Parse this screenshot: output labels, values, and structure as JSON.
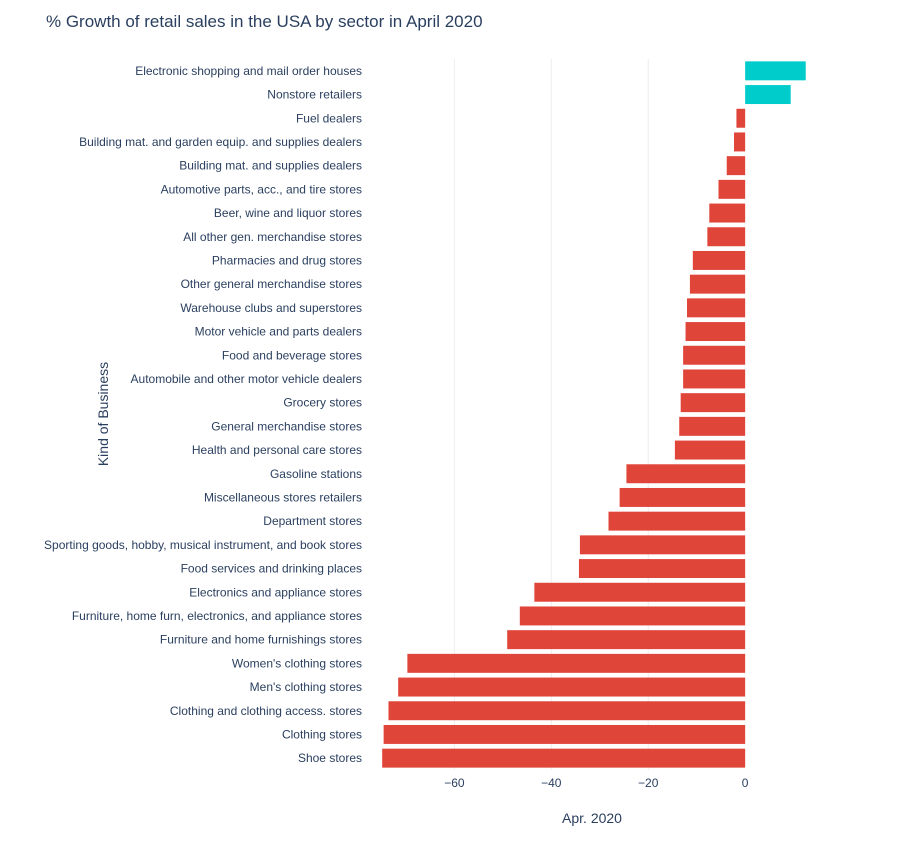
{
  "chart_data": {
    "type": "bar",
    "orientation": "horizontal",
    "title": "% Growth of retail sales in the USA by sector in April 2020",
    "xlabel": "Apr. 2020",
    "ylabel": "Kind of Business",
    "xlim": [
      -77,
      14
    ],
    "xticks": [
      -60,
      -40,
      -20,
      0
    ],
    "xtick_labels": [
      "−60",
      "−40",
      "−20",
      "0"
    ],
    "grid": "vertical",
    "colors": {
      "positive": "#00cccc",
      "negative": "#e0453a",
      "grid": "#eeeeee",
      "text": "#2a3f5f"
    },
    "categories": [
      "Electronic shopping and mail order houses",
      "Nonstore retailers",
      "Fuel dealers",
      "Building mat. and garden equip. and supplies dealers",
      "Building mat. and supplies dealers",
      "Automotive parts, acc., and tire stores",
      "Beer, wine and liquor stores",
      "All other gen. merchandise stores",
      "Pharmacies and drug stores",
      "Other general merchandise stores",
      "Warehouse clubs and superstores",
      "Motor vehicle and parts dealers",
      "Food and beverage stores",
      "Automobile and other motor vehicle dealers",
      "Grocery stores",
      "General merchandise stores",
      "Health and personal care stores",
      "Gasoline stations",
      "Miscellaneous stores retailers",
      "Department stores",
      "Sporting goods, hobby, musical instrument, and book stores",
      "Food services and drinking places",
      "Electronics and appliance stores",
      "Furniture, home furn, electronics, and appliance stores",
      "Furniture and home furnishings stores",
      "Women's clothing stores",
      "Men's clothing stores",
      "Clothing and clothing access. stores",
      "Clothing stores",
      "Shoe stores"
    ],
    "values": [
      12.5,
      9.4,
      -1.8,
      -2.3,
      -3.8,
      -5.5,
      -7.4,
      -7.8,
      -10.8,
      -11.4,
      -12.0,
      -12.3,
      -12.8,
      -12.8,
      -13.3,
      -13.6,
      -14.5,
      -24.5,
      -25.9,
      -28.2,
      -34.1,
      -34.3,
      -43.5,
      -46.5,
      -49.1,
      -69.7,
      -71.6,
      -73.6,
      -74.6,
      -74.9
    ]
  }
}
